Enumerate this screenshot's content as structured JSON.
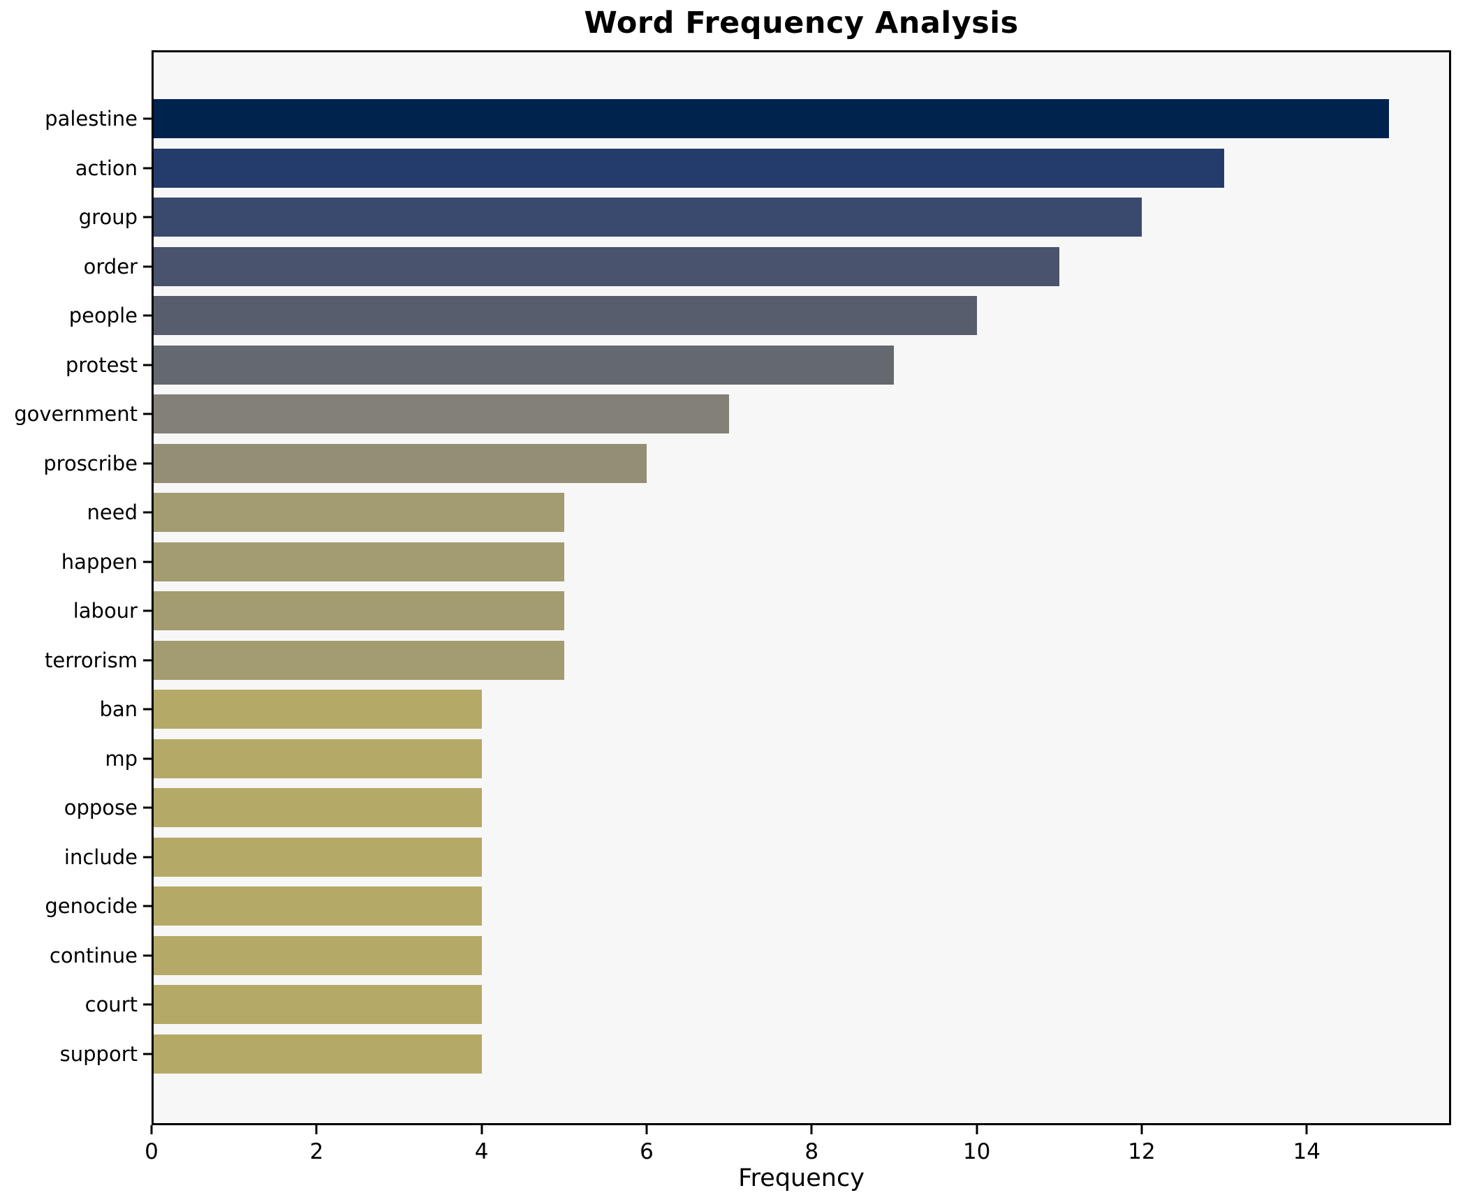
{
  "figure": {
    "title": "Word Frequency Analysis",
    "background_color": "#ffffff",
    "plot_background_color": "#f7f7f7",
    "spine_color": "#000000",
    "text_color": "#000000"
  },
  "chart_data": {
    "type": "bar",
    "orientation": "horizontal",
    "title": "Word Frequency Analysis",
    "xlabel": "Frequency",
    "ylabel": "",
    "grid": false,
    "legend": false,
    "xlim": [
      0,
      15.75
    ],
    "x_ticks": [
      0,
      2,
      4,
      6,
      8,
      10,
      12,
      14
    ],
    "categories": [
      "palestine",
      "action",
      "group",
      "order",
      "people",
      "protest",
      "government",
      "proscribe",
      "need",
      "happen",
      "labour",
      "terrorism",
      "ban",
      "mp",
      "oppose",
      "include",
      "genocide",
      "continue",
      "court",
      "support"
    ],
    "values": [
      15,
      13,
      12,
      11,
      10,
      9,
      7,
      6,
      5,
      5,
      5,
      5,
      4,
      4,
      4,
      4,
      4,
      4,
      4,
      4
    ],
    "bar_colors": [
      "#00234e",
      "#233c6b",
      "#394a6e",
      "#49536d",
      "#575d6d",
      "#64686f",
      "#838077",
      "#938e74",
      "#a39c70",
      "#a39c70",
      "#a39c70",
      "#a39c70",
      "#b4a967",
      "#b4a967",
      "#b4a967",
      "#b4a967",
      "#b4a967",
      "#b4a967",
      "#b4a967",
      "#b4a967"
    ],
    "colormap_name": "cividis-reversed-by-value"
  }
}
